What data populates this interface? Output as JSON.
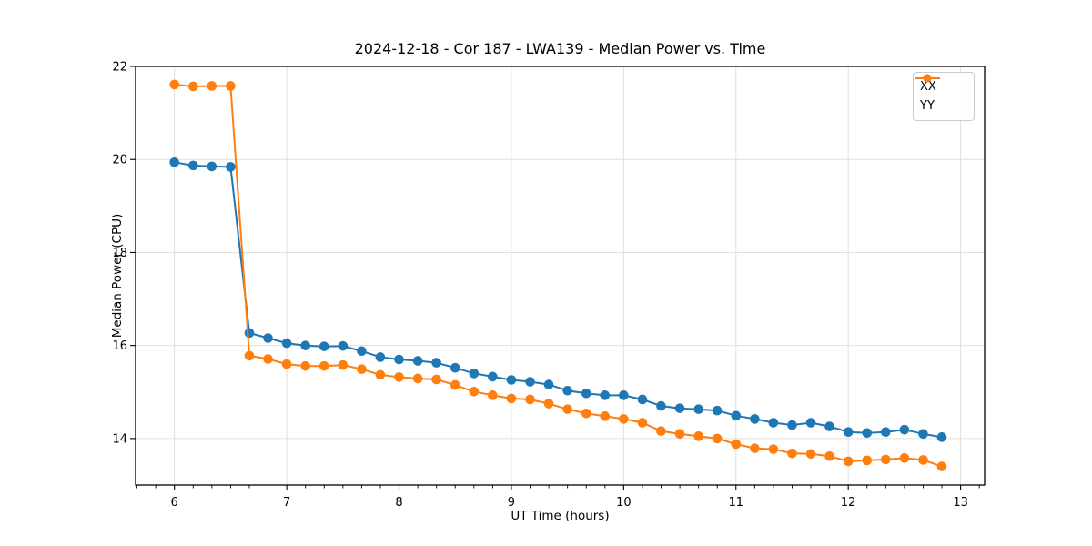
{
  "chart_data": {
    "type": "line",
    "title": "2024-12-18 - Cor 187 - LWA139 - Median Power vs. Time",
    "xlabel": "UT Time (hours)",
    "ylabel": "Median Power (CPU)",
    "xlim": [
      5.654,
      13.214
    ],
    "ylim": [
      13.0,
      22.0
    ],
    "xticks": [
      6,
      7,
      8,
      9,
      10,
      11,
      12,
      13
    ],
    "yticks": [
      14,
      16,
      18,
      20,
      22
    ],
    "x_minor_step": 0.16667,
    "grid": "major",
    "grid_color": "#e0e0e0",
    "legend_position": "upper right",
    "marker": "circle",
    "x": [
      6.0,
      6.167,
      6.333,
      6.5,
      6.667,
      6.833,
      7.0,
      7.167,
      7.333,
      7.5,
      7.667,
      7.833,
      8.0,
      8.167,
      8.333,
      8.5,
      8.667,
      8.833,
      9.0,
      9.167,
      9.333,
      9.5,
      9.667,
      9.833,
      10.0,
      10.167,
      10.333,
      10.5,
      10.667,
      10.833,
      11.0,
      11.167,
      11.333,
      11.5,
      11.667,
      11.833,
      12.0,
      12.167,
      12.333,
      12.5,
      12.667,
      12.833
    ],
    "series": [
      {
        "name": "XX",
        "color": "#1f77b4",
        "values": [
          19.94,
          19.87,
          19.85,
          19.84,
          16.27,
          16.16,
          16.05,
          16.0,
          15.98,
          15.99,
          15.88,
          15.75,
          15.7,
          15.67,
          15.63,
          15.52,
          15.4,
          15.33,
          15.26,
          15.22,
          15.16,
          15.03,
          14.97,
          14.93,
          14.93,
          14.84,
          14.7,
          14.65,
          14.63,
          14.6,
          14.49,
          14.42,
          14.34,
          14.29,
          14.34,
          14.26,
          14.14,
          14.12,
          14.14,
          14.19,
          14.1,
          14.03
        ]
      },
      {
        "name": "YY",
        "color": "#ff7f0e",
        "values": [
          21.61,
          21.57,
          21.58,
          21.58,
          15.78,
          15.71,
          15.6,
          15.56,
          15.56,
          15.58,
          15.49,
          15.37,
          15.32,
          15.29,
          15.27,
          15.15,
          15.01,
          14.93,
          14.86,
          14.84,
          14.75,
          14.63,
          14.54,
          14.48,
          14.42,
          14.34,
          14.16,
          14.1,
          14.05,
          14.0,
          13.88,
          13.79,
          13.77,
          13.68,
          13.67,
          13.62,
          13.51,
          13.53,
          13.55,
          13.58,
          13.54,
          13.4
        ]
      }
    ]
  }
}
